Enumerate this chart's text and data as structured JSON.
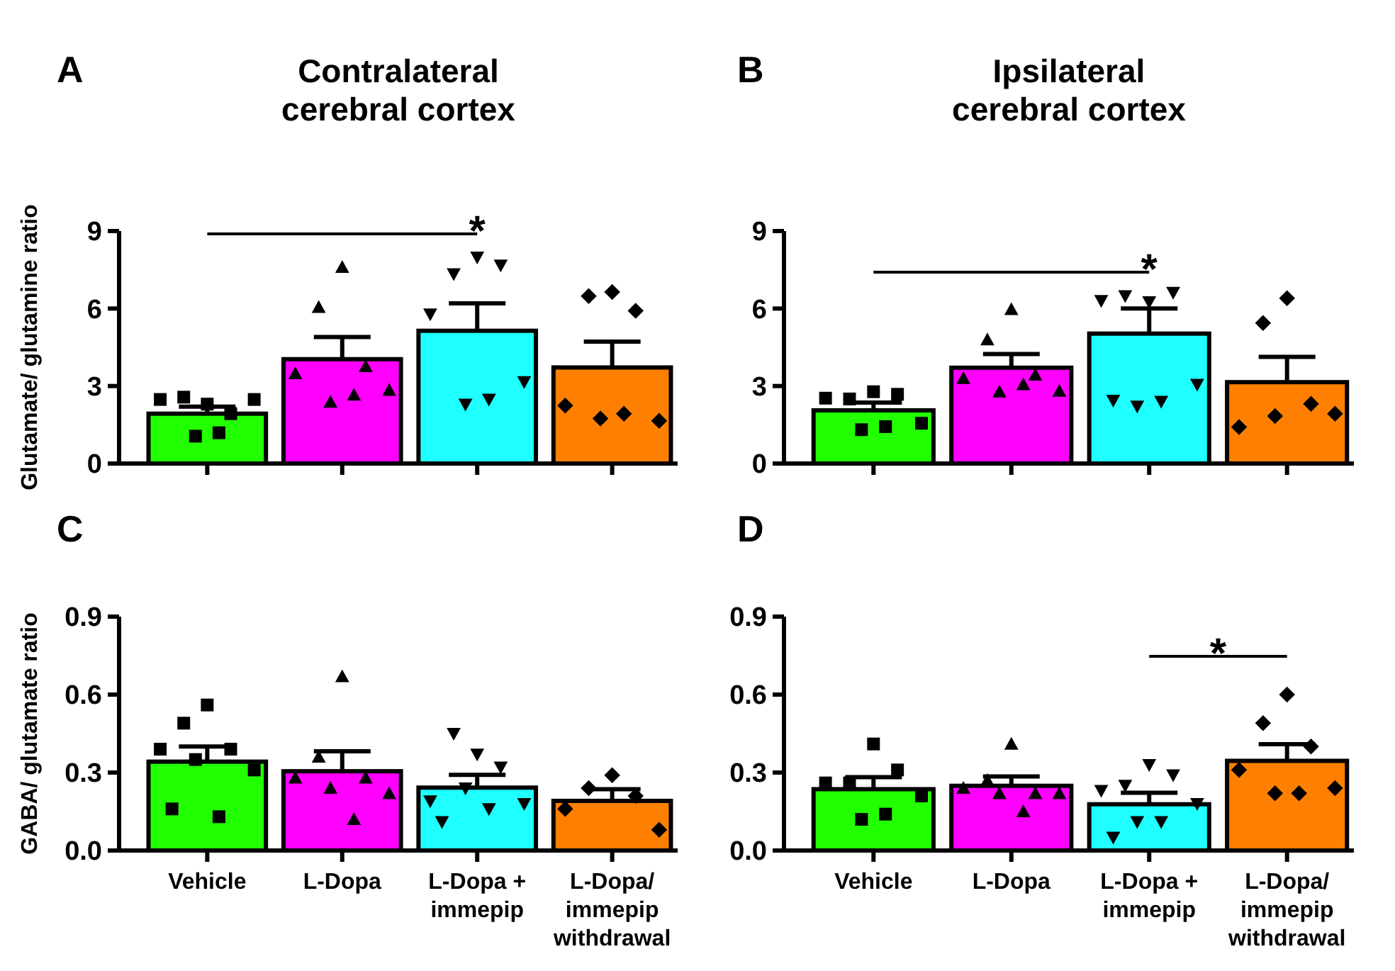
{
  "chart_data": [
    {
      "type": "bar",
      "title": "Contralateral cerebral cortex",
      "ylabel": "Glutamate/ glutamine ratio",
      "annotations": [
        "A",
        "*"
      ],
      "categories": [
        "Vehicle",
        "L-Dopa",
        "L-Dopa + immepip",
        "L-Dopa/ immepip withdrawal"
      ],
      "ylim": [
        0,
        9
      ],
      "yticks": [
        0,
        3,
        6,
        9
      ],
      "tick_labels": "y",
      "grid": false,
      "series": [
        {
          "type": "bar",
          "colors": [
            "#22ff00",
            "#ff00ff",
            "#1fffff",
            "#ff8000"
          ],
          "values": [
            1.93,
            4.04,
            5.14,
            3.72
          ],
          "errors": [
            0.27,
            0.86,
            1.06,
            1.0
          ]
        },
        {
          "type": "scatter",
          "marker": "square",
          "color": "#000000",
          "x": [
            "Vehicle",
            "Vehicle",
            "Vehicle",
            "Vehicle",
            "Vehicle",
            "Vehicle",
            "Vehicle"
          ],
          "values": [
            2.3,
            2.57,
            1.93,
            2.48,
            2.48,
            1.06,
            1.19
          ]
        },
        {
          "type": "scatter",
          "marker": "triangle",
          "color": "#000000",
          "x": [
            "L-Dopa",
            "L-Dopa",
            "L-Dopa",
            "L-Dopa",
            "L-Dopa",
            "L-Dopa",
            "L-Dopa"
          ],
          "values": [
            7.6,
            6.05,
            3.76,
            3.49,
            2.84,
            2.38,
            2.66
          ]
        },
        {
          "type": "scatter",
          "marker": "triangle-down",
          "color": "#000000",
          "x": [
            "L-Dopa + immepip",
            "L-Dopa + immepip",
            "L-Dopa + immepip",
            "L-Dopa + immepip",
            "L-Dopa + immepip",
            "L-Dopa + immepip",
            "L-Dopa + immepip"
          ],
          "values": [
            7.98,
            7.34,
            7.67,
            5.78,
            3.16,
            2.29,
            2.48
          ]
        },
        {
          "type": "scatter",
          "marker": "diamond",
          "color": "#000000",
          "x": [
            "L-Dopa/ immepip withdrawal",
            "L-Dopa/ immepip withdrawal",
            "L-Dopa/ immepip withdrawal",
            "L-Dopa/ immepip withdrawal",
            "L-Dopa/ immepip withdrawal",
            "L-Dopa/ immepip withdrawal",
            "L-Dopa/ immepip withdrawal"
          ],
          "values": [
            6.64,
            6.48,
            5.91,
            2.24,
            1.65,
            1.74,
            1.93
          ]
        }
      ]
    },
    {
      "type": "bar",
      "title": "Ipsilateral cerebral cortex",
      "annotations": [
        "B",
        "*"
      ],
      "categories": [
        "Vehicle",
        "L-Dopa",
        "L-Dopa + immepip",
        "L-Dopa/ immepip withdrawal"
      ],
      "ylim": [
        0,
        9
      ],
      "yticks": [
        0,
        3,
        6,
        9
      ],
      "tick_labels": "y",
      "grid": false,
      "series": [
        {
          "type": "bar",
          "colors": [
            "#22ff00",
            "#ff00ff",
            "#1fffff",
            "#ff8000"
          ],
          "values": [
            2.06,
            3.71,
            5.03,
            3.15
          ],
          "errors": [
            0.3,
            0.53,
            0.97,
            0.98
          ]
        },
        {
          "type": "scatter",
          "marker": "square",
          "color": "#000000",
          "x": [
            "Vehicle",
            "Vehicle",
            "Vehicle",
            "Vehicle",
            "Vehicle",
            "Vehicle",
            "Vehicle"
          ],
          "values": [
            2.78,
            2.5,
            2.68,
            2.53,
            1.56,
            1.31,
            1.43
          ]
        },
        {
          "type": "scatter",
          "marker": "triangle",
          "color": "#000000",
          "x": [
            "L-Dopa",
            "L-Dopa",
            "L-Dopa",
            "L-Dopa",
            "L-Dopa",
            "L-Dopa",
            "L-Dopa"
          ],
          "values": [
            5.97,
            4.8,
            3.43,
            3.3,
            2.81,
            2.78,
            3.06
          ]
        },
        {
          "type": "scatter",
          "marker": "triangle-down",
          "color": "#000000",
          "x": [
            "L-Dopa + immepip",
            "L-Dopa + immepip",
            "L-Dopa + immepip",
            "L-Dopa + immepip",
            "L-Dopa + immepip",
            "L-Dopa + immepip",
            "L-Dopa + immepip",
            "L-Dopa + immepip"
          ],
          "values": [
            6.25,
            6.49,
            6.62,
            6.3,
            3.06,
            2.21,
            2.4,
            2.44
          ]
        },
        {
          "type": "scatter",
          "marker": "diamond",
          "color": "#000000",
          "x": [
            "L-Dopa/ immepip withdrawal",
            "L-Dopa/ immepip withdrawal",
            "L-Dopa/ immepip withdrawal",
            "L-Dopa/ immepip withdrawal",
            "L-Dopa/ immepip withdrawal",
            "L-Dopa/ immepip withdrawal"
          ],
          "values": [
            6.4,
            5.44,
            2.31,
            1.41,
            1.93,
            1.84
          ]
        }
      ]
    },
    {
      "type": "bar",
      "ylabel": "GABA/ glutamate ratio",
      "annotations": [
        "C"
      ],
      "categories": [
        "Vehicle",
        "L-Dopa",
        "L-Dopa + immepip",
        "L-Dopa/ immepip withdrawal"
      ],
      "ylim": [
        0,
        0.9
      ],
      "yticks": [
        {
          "value": 0,
          "label": "0.0"
        },
        0.3,
        0.6,
        0.9
      ],
      "grid": false,
      "series": [
        {
          "type": "bar",
          "colors": [
            "#22ff00",
            "#ff00ff",
            "#1fffff",
            "#ff8000"
          ],
          "values": [
            0.342,
            0.305,
            0.242,
            0.191
          ],
          "errors": [
            0.058,
            0.077,
            0.049,
            0.045
          ]
        },
        {
          "type": "scatter",
          "marker": "square",
          "color": "#000000",
          "x": [
            "Vehicle",
            "Vehicle",
            "Vehicle",
            "Vehicle",
            "Vehicle",
            "Vehicle",
            "Vehicle",
            "Vehicle"
          ],
          "values": [
            0.56,
            0.49,
            0.39,
            0.39,
            0.31,
            0.35,
            0.13,
            0.16
          ]
        },
        {
          "type": "scatter",
          "marker": "triangle",
          "color": "#000000",
          "x": [
            "L-Dopa",
            "L-Dopa",
            "L-Dopa",
            "L-Dopa",
            "L-Dopa",
            "L-Dopa",
            "L-Dopa"
          ],
          "values": [
            0.67,
            0.36,
            0.28,
            0.28,
            0.22,
            0.24,
            0.12
          ]
        },
        {
          "type": "scatter",
          "marker": "triangle-down",
          "color": "#000000",
          "x": [
            "L-Dopa + immepip",
            "L-Dopa + immepip",
            "L-Dopa + immepip",
            "L-Dopa + immepip",
            "L-Dopa + immepip",
            "L-Dopa + immepip",
            "L-Dopa + immepip",
            "L-Dopa + immepip"
          ],
          "values": [
            0.37,
            0.45,
            0.32,
            0.19,
            0.18,
            0.24,
            0.16,
            0.11
          ]
        },
        {
          "type": "scatter",
          "marker": "diamond",
          "color": "#000000",
          "x": [
            "L-Dopa/ immepip withdrawal",
            "L-Dopa/ immepip withdrawal",
            "L-Dopa/ immepip withdrawal",
            "L-Dopa/ immepip withdrawal",
            "L-Dopa/ immepip withdrawal"
          ],
          "values": [
            0.29,
            0.24,
            0.21,
            0.16,
            0.08
          ]
        }
      ]
    },
    {
      "type": "bar",
      "annotations": [
        "D",
        "*"
      ],
      "categories": [
        "Vehicle",
        "L-Dopa",
        "L-Dopa + immepip",
        "L-Dopa/ immepip withdrawal"
      ],
      "ylim": [
        0,
        0.9
      ],
      "yticks": [
        {
          "value": 0,
          "label": "0.0"
        },
        0.3,
        0.6,
        0.9
      ],
      "grid": false,
      "series": [
        {
          "type": "bar",
          "colors": [
            "#22ff00",
            "#ff00ff",
            "#1fffff",
            "#ff8000"
          ],
          "values": [
            0.236,
            0.249,
            0.178,
            0.345
          ],
          "errors": [
            0.046,
            0.036,
            0.044,
            0.064
          ]
        },
        {
          "type": "scatter",
          "marker": "square",
          "color": "#000000",
          "x": [
            "Vehicle",
            "Vehicle",
            "Vehicle",
            "Vehicle",
            "Vehicle",
            "Vehicle",
            "Vehicle"
          ],
          "values": [
            0.41,
            0.26,
            0.31,
            0.26,
            0.21,
            0.12,
            0.14
          ]
        },
        {
          "type": "scatter",
          "marker": "triangle",
          "color": "#000000",
          "x": [
            "L-Dopa",
            "L-Dopa",
            "L-Dopa",
            "L-Dopa",
            "L-Dopa",
            "L-Dopa",
            "L-Dopa"
          ],
          "values": [
            0.41,
            0.27,
            0.22,
            0.24,
            0.22,
            0.22,
            0.15
          ]
        },
        {
          "type": "scatter",
          "marker": "triangle-down",
          "color": "#000000",
          "x": [
            "L-Dopa + immepip",
            "L-Dopa + immepip",
            "L-Dopa + immepip",
            "L-Dopa + immepip",
            "L-Dopa + immepip",
            "L-Dopa + immepip",
            "L-Dopa + immepip",
            "L-Dopa + immepip"
          ],
          "values": [
            0.33,
            0.25,
            0.29,
            0.23,
            0.18,
            0.11,
            0.11,
            0.05
          ]
        },
        {
          "type": "scatter",
          "marker": "diamond",
          "color": "#000000",
          "x": [
            "L-Dopa/ immepip withdrawal",
            "L-Dopa/ immepip withdrawal",
            "L-Dopa/ immepip withdrawal",
            "L-Dopa/ immepip withdrawal",
            "L-Dopa/ immepip withdrawal",
            "L-Dopa/ immepip withdrawal",
            "L-Dopa/ immepip withdrawal"
          ],
          "values": [
            0.6,
            0.49,
            0.4,
            0.31,
            0.24,
            0.22,
            0.22
          ]
        }
      ]
    }
  ]
}
